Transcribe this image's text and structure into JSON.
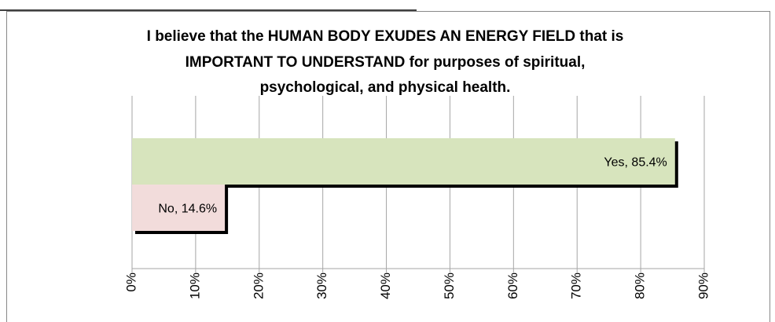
{
  "chart_data": {
    "type": "bar",
    "orientation": "horizontal",
    "title": [
      "I believe that the HUMAN BODY EXUDES AN ENERGY FIELD that is",
      "IMPORTANT TO UNDERSTAND for purposes of spiritual,",
      "psychological, and physical health."
    ],
    "values": [
      85.4,
      14.6
    ],
    "value_labels": [
      "Yes, 85.4%",
      "No, 14.6%"
    ],
    "colors": [
      "#d7e4bd",
      "#f2dcdb"
    ],
    "xlim": [
      0,
      90
    ],
    "xticks": [
      {
        "value": 0,
        "label": "0%"
      },
      {
        "value": 10,
        "label": "10%"
      },
      {
        "value": 20,
        "label": "20%"
      },
      {
        "value": 30,
        "label": "30%"
      },
      {
        "value": 40,
        "label": "40%"
      },
      {
        "value": 50,
        "label": "50%"
      },
      {
        "value": 60,
        "label": "60%"
      },
      {
        "value": 70,
        "label": "70%"
      },
      {
        "value": 80,
        "label": "80%"
      },
      {
        "value": 90,
        "label": "90%"
      }
    ],
    "grid": true
  }
}
